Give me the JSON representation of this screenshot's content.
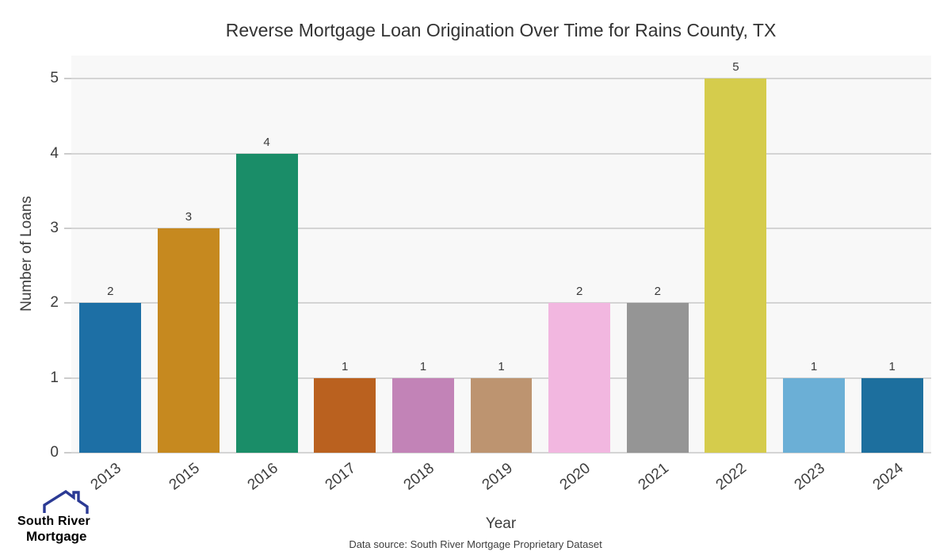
{
  "chart_data": {
    "type": "bar",
    "title": "Reverse Mortgage Loan Origination Over Time for Rains County, TX",
    "categories": [
      "2013",
      "2015",
      "2016",
      "2017",
      "2018",
      "2019",
      "2020",
      "2021",
      "2022",
      "2023",
      "2024"
    ],
    "values": [
      2,
      3,
      4,
      1,
      1,
      1,
      2,
      2,
      5,
      1,
      1
    ],
    "bar_colors": [
      "#1d6fa5",
      "#c6891f",
      "#1a8d68",
      "#ba611f",
      "#c283b7",
      "#bd9470",
      "#f2b7e0",
      "#959595",
      "#d5cc4c",
      "#6bafd6",
      "#1d6f9e"
    ],
    "xlabel": "Year",
    "ylabel": "Number of Loans",
    "ylim": [
      0,
      5.31
    ],
    "yticks": [
      0,
      1,
      2,
      3,
      4,
      5
    ],
    "grid": true,
    "legend": "none",
    "plot_bg_color": "#f8f8f8",
    "gridline_color": "#d4d4d4",
    "tick_mark_color": "#cccccc"
  },
  "logo": {
    "line1": "South River",
    "line2": "Mortgage",
    "primary_color": "#4a7bc0",
    "secondary_color": "#2b3a94"
  },
  "footer": {
    "data_source": "Data source: South River Mortgage Proprietary Dataset"
  }
}
